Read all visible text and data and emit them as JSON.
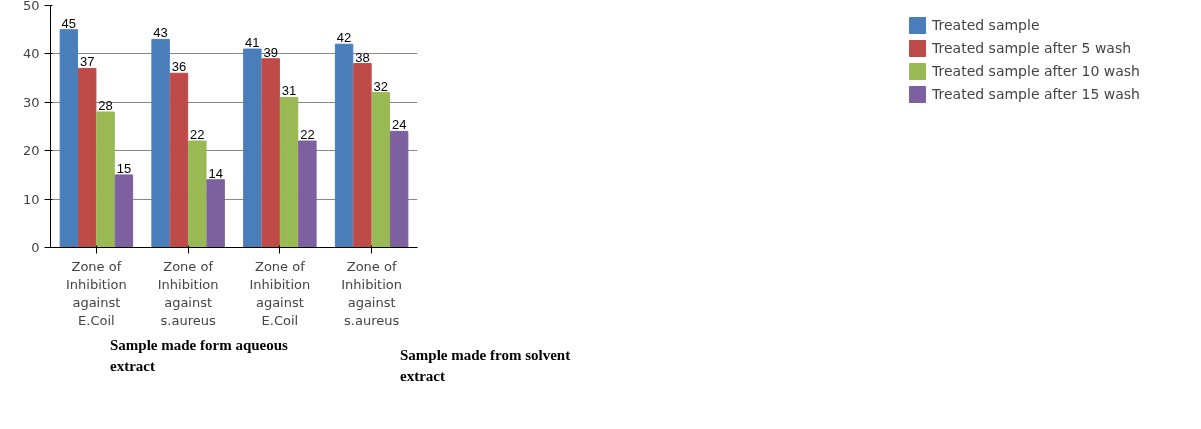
{
  "chart_data": {
    "type": "bar",
    "categories": [
      "Zone of Inhibition against E.Coil",
      "Zone of Inhibition against s.aureus",
      "Zone of Inhibition against E.Coil",
      "Zone of Inhibition against s.aureus"
    ],
    "series": [
      {
        "name": "Treated sample",
        "color": "#4a7ebb",
        "values": [
          45,
          43,
          41,
          42
        ]
      },
      {
        "name": "Treated sample after 5 wash",
        "color": "#be4b48",
        "values": [
          37,
          36,
          39,
          38
        ]
      },
      {
        "name": "Treated sample after 10 wash",
        "color": "#98b954",
        "values": [
          28,
          22,
          31,
          32
        ]
      },
      {
        "name": "Treated sample after 15 wash",
        "color": "#7d60a0",
        "values": [
          15,
          14,
          22,
          24
        ]
      }
    ],
    "ylim": [
      0,
      50
    ],
    "yticks": [
      0,
      10,
      20,
      30,
      40,
      50
    ],
    "grid": "y",
    "legend": "right",
    "data_labels": true,
    "annotations": [
      "Sample made form aqueous extract",
      "Sample made from solvent extract"
    ]
  }
}
